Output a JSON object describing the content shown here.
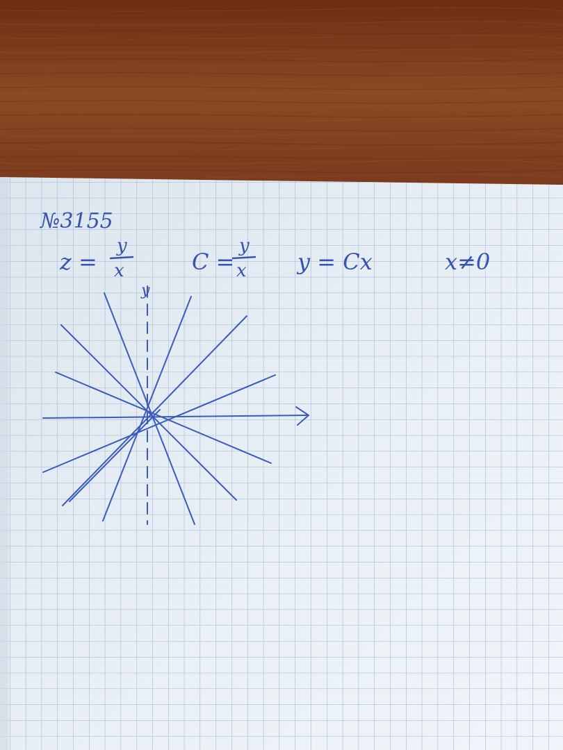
{
  "photo": {
    "subject": "handwritten math notes on grid notebook paper",
    "colors": {
      "table_wood": "#7a3a1c",
      "paper": "#e7eef5",
      "grid_line": "#9fb3d6",
      "ink": "#3553b0"
    }
  },
  "notes": {
    "problem_number": "№3155",
    "equation_z": {
      "lhs": "z =",
      "numerator": "y",
      "denominator": "x"
    },
    "equation_c": {
      "lhs": "C =",
      "numerator": "y",
      "denominator": "x"
    },
    "equation_y": "y = Cx",
    "condition": "x≠0",
    "axis_y_label": "y"
  },
  "sketch": {
    "description_values": {
      "line_count": 6,
      "y_axis_style": "dashed",
      "x_axis_arrow": true
    }
  }
}
